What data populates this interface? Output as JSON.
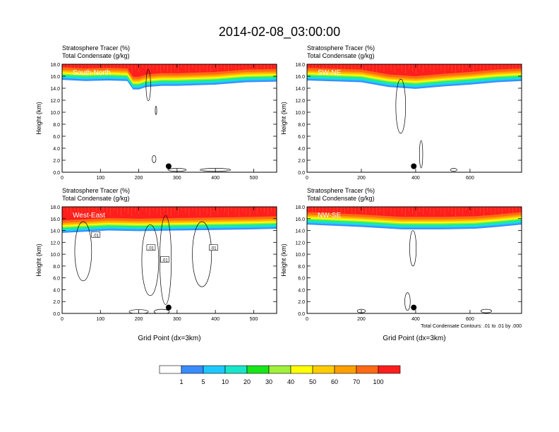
{
  "title": "2014-02-08_03:00:00",
  "colors": {
    "levels": [
      "#ffffff",
      "#3b8cff",
      "#1ec8ff",
      "#19e6c8",
      "#17f07a",
      "#19e619",
      "#a0f03c",
      "#ffff00",
      "#ffcc00",
      "#ffa000",
      "#ff6a14",
      "#ff1e1e"
    ]
  },
  "colorbar": {
    "labels": [
      "1",
      "5",
      "10",
      "20",
      "30",
      "40",
      "50",
      "60",
      "70",
      "100"
    ]
  },
  "contour_note": "Total Condensate Contours: .01 to .01 by .000",
  "chart_data": [
    {
      "type": "contour",
      "panel": "South-North",
      "title_line1": "Stratosphere Tracer   (%)",
      "title_line2": "Total Condensate   (g/kg)",
      "ylabel": "Height (km)",
      "xlabel": "",
      "ylim": [
        0,
        18
      ],
      "yticks": [
        "0.0",
        "2.0",
        "4.0",
        "6.0",
        "8.0",
        "10.0",
        "12.0",
        "14.0",
        "16.0",
        "18.0"
      ],
      "xlim": [
        0,
        560
      ],
      "xticks": [
        0,
        100,
        200,
        300,
        400,
        500
      ],
      "tropopause_km": [
        [
          0,
          15.4
        ],
        [
          60,
          15.2
        ],
        [
          120,
          15.3
        ],
        [
          170,
          15.2
        ],
        [
          185,
          13.8
        ],
        [
          200,
          13.8
        ],
        [
          220,
          14.2
        ],
        [
          260,
          14.4
        ],
        [
          300,
          14.4
        ],
        [
          400,
          14.6
        ],
        [
          480,
          15.0
        ],
        [
          560,
          15.1
        ]
      ],
      "marker": {
        "x": 278,
        "y": 1.0
      }
    },
    {
      "type": "contour",
      "panel": "SW-NE",
      "title_line1": "Stratosphere Tracer   (%)",
      "title_line2": "Total Condensate   (g/kg)",
      "ylabel": "Height (km)",
      "xlabel": "",
      "ylim": [
        0,
        18
      ],
      "yticks": [
        "0.0",
        "2.0",
        "4.0",
        "6.0",
        "8.0",
        "10.0",
        "12.0",
        "14.0",
        "16.0",
        "18.0"
      ],
      "xlim": [
        0,
        790
      ],
      "xticks": [
        0,
        200,
        400,
        600
      ],
      "tropopause_km": [
        [
          0,
          15.3
        ],
        [
          200,
          15.0
        ],
        [
          300,
          14.2
        ],
        [
          400,
          13.9
        ],
        [
          500,
          14.3
        ],
        [
          600,
          14.6
        ],
        [
          700,
          15.0
        ],
        [
          790,
          15.2
        ]
      ],
      "marker": {
        "x": 393,
        "y": 1.0
      }
    },
    {
      "type": "contour",
      "panel": "West-East",
      "title_line1": "Stratosphere Tracer   (%)",
      "title_line2": "Total Condensate   (g/kg)",
      "ylabel": "Height (km)",
      "xlabel": "Grid Point (dx=3km)",
      "ylim": [
        0,
        18
      ],
      "yticks": [
        "0.0",
        "2.0",
        "4.0",
        "6.0",
        "8.0",
        "10.0",
        "12.0",
        "14.0",
        "16.0",
        "18.0"
      ],
      "xlim": [
        0,
        560
      ],
      "xticks": [
        0,
        100,
        200,
        300,
        400,
        500
      ],
      "tropopause_km": [
        [
          0,
          13.6
        ],
        [
          60,
          13.8
        ],
        [
          120,
          14.0
        ],
        [
          200,
          13.9
        ],
        [
          300,
          14.0
        ],
        [
          400,
          14.1
        ],
        [
          500,
          14.2
        ],
        [
          560,
          14.3
        ]
      ],
      "contour_labels": [
        {
          "x": 88,
          "y": 13.2,
          "text": ".01"
        },
        {
          "x": 268,
          "y": 9.0,
          "text": ".01"
        },
        {
          "x": 232,
          "y": 11.0,
          "text": ".01"
        },
        {
          "x": 395,
          "y": 11.0,
          "text": ".01"
        }
      ],
      "marker": {
        "x": 278,
        "y": 1.0
      }
    },
    {
      "type": "contour",
      "panel": "NW-SE",
      "title_line1": "Stratosphere Tracer   (%)",
      "title_line2": "Total Condensate   (g/kg)",
      "ylabel": "Height (km)",
      "xlabel": "Grid Point (dx=3km)",
      "ylim": [
        0,
        18
      ],
      "yticks": [
        "0.0",
        "2.0",
        "4.0",
        "6.0",
        "8.0",
        "10.0",
        "12.0",
        "14.0",
        "16.0",
        "18.0"
      ],
      "xlim": [
        0,
        790
      ],
      "xticks": [
        0,
        200,
        400,
        600
      ],
      "tropopause_km": [
        [
          0,
          15.0
        ],
        [
          200,
          14.6
        ],
        [
          350,
          14.2
        ],
        [
          500,
          14.2
        ],
        [
          620,
          14.3
        ],
        [
          700,
          14.6
        ],
        [
          790,
          15.0
        ]
      ],
      "marker": {
        "x": 393,
        "y": 1.0
      }
    }
  ]
}
